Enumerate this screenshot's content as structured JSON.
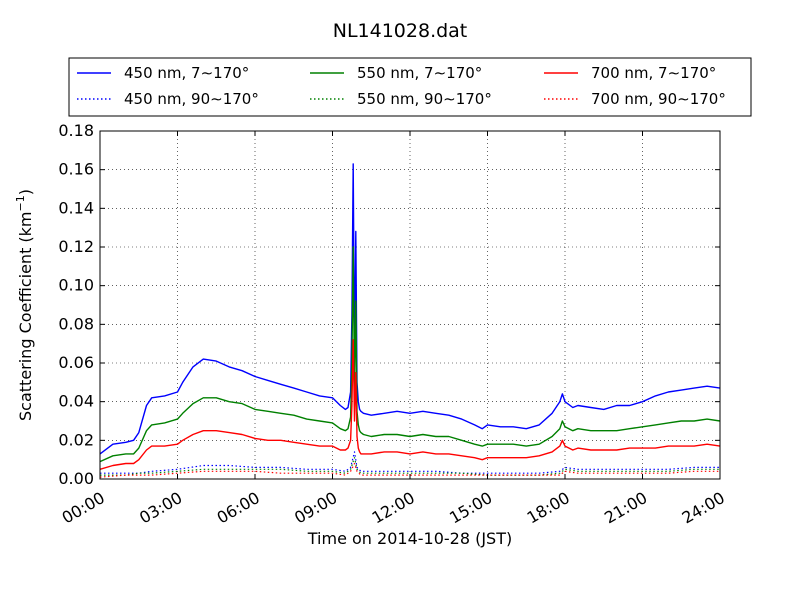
{
  "chart_data": {
    "type": "line",
    "title": "NL141028.dat",
    "xlabel": "Time on 2014-10-28 (JST)",
    "ylabel_main": "Scattering Coefficient (km",
    "ylabel_sup": "−1",
    "ylabel_close": ")",
    "xlim": [
      0,
      24
    ],
    "ylim": [
      0,
      0.18
    ],
    "grid": true,
    "legend_position": "top, above plot",
    "x_tick_labels": [
      "00:00",
      "03:00",
      "06:00",
      "09:00",
      "12:00",
      "15:00",
      "18:00",
      "21:00",
      "24:00"
    ],
    "x_ticks": [
      0,
      3,
      6,
      9,
      12,
      15,
      18,
      21,
      24
    ],
    "y_tick_labels": [
      "0.00",
      "0.02",
      "0.04",
      "0.06",
      "0.08",
      "0.10",
      "0.12",
      "0.14",
      "0.16",
      "0.18"
    ],
    "y_ticks": [
      0,
      0.02,
      0.04,
      0.06,
      0.08,
      0.1,
      0.12,
      0.14,
      0.16,
      0.18
    ],
    "series": [
      {
        "name": "450 nm, 7∼170°",
        "color": "#0000ff",
        "style": "solid",
        "x": [
          0,
          0.5,
          1.0,
          1.3,
          1.5,
          1.8,
          2.0,
          2.5,
          3.0,
          3.2,
          3.6,
          4.0,
          4.5,
          5.0,
          5.5,
          6.0,
          6.5,
          7.0,
          7.5,
          8.0,
          8.5,
          9.0,
          9.3,
          9.5,
          9.6,
          9.7,
          9.75,
          9.8,
          9.85,
          9.9,
          9.95,
          10.0,
          10.05,
          10.1,
          10.2,
          10.5,
          11.0,
          11.5,
          12.0,
          12.5,
          13.0,
          13.5,
          14.0,
          14.5,
          14.8,
          15.0,
          15.5,
          16.0,
          16.5,
          17.0,
          17.5,
          17.8,
          17.9,
          18.0,
          18.3,
          18.5,
          19.0,
          19.5,
          20.0,
          20.5,
          21.0,
          21.5,
          22.0,
          22.5,
          23.0,
          23.5,
          24.0
        ],
        "y": [
          0.013,
          0.018,
          0.019,
          0.02,
          0.024,
          0.038,
          0.042,
          0.043,
          0.045,
          0.05,
          0.058,
          0.062,
          0.061,
          0.058,
          0.056,
          0.053,
          0.051,
          0.049,
          0.047,
          0.045,
          0.043,
          0.042,
          0.038,
          0.036,
          0.037,
          0.045,
          0.085,
          0.163,
          0.06,
          0.128,
          0.05,
          0.04,
          0.036,
          0.035,
          0.034,
          0.033,
          0.034,
          0.035,
          0.034,
          0.035,
          0.034,
          0.033,
          0.031,
          0.028,
          0.026,
          0.028,
          0.027,
          0.027,
          0.026,
          0.028,
          0.034,
          0.04,
          0.044,
          0.04,
          0.037,
          0.038,
          0.037,
          0.036,
          0.038,
          0.038,
          0.04,
          0.043,
          0.045,
          0.046,
          0.047,
          0.048,
          0.047
        ]
      },
      {
        "name": "450 nm, 90∼170°",
        "color": "#0000ff",
        "style": "dotted",
        "x": [
          0,
          1,
          1.5,
          2,
          3,
          4,
          5,
          6,
          7,
          8,
          9,
          9.5,
          9.7,
          9.85,
          9.95,
          10.1,
          11,
          12,
          13,
          14,
          15,
          16,
          17,
          17.8,
          18,
          18.5,
          19,
          20,
          21,
          22,
          23,
          24
        ],
        "y": [
          0.003,
          0.003,
          0.003,
          0.004,
          0.005,
          0.007,
          0.007,
          0.006,
          0.006,
          0.005,
          0.005,
          0.004,
          0.006,
          0.014,
          0.006,
          0.004,
          0.004,
          0.004,
          0.004,
          0.003,
          0.003,
          0.003,
          0.003,
          0.004,
          0.006,
          0.005,
          0.005,
          0.005,
          0.005,
          0.005,
          0.006,
          0.006
        ]
      },
      {
        "name": "550 nm, 7∼170°",
        "color": "#008000",
        "style": "solid",
        "x": [
          0,
          0.5,
          1.0,
          1.3,
          1.5,
          1.8,
          2.0,
          2.5,
          3.0,
          3.2,
          3.6,
          4.0,
          4.5,
          5.0,
          5.5,
          6.0,
          6.5,
          7.0,
          7.5,
          8.0,
          8.5,
          9.0,
          9.3,
          9.5,
          9.6,
          9.7,
          9.75,
          9.8,
          9.85,
          9.9,
          9.95,
          10.0,
          10.05,
          10.1,
          10.2,
          10.5,
          11.0,
          11.5,
          12.0,
          12.5,
          13.0,
          13.5,
          14.0,
          14.5,
          14.8,
          15.0,
          15.5,
          16.0,
          16.5,
          17.0,
          17.5,
          17.8,
          17.9,
          18.0,
          18.3,
          18.5,
          19.0,
          19.5,
          20.0,
          20.5,
          21.0,
          21.5,
          22.0,
          22.5,
          23.0,
          23.5,
          24.0
        ],
        "y": [
          0.009,
          0.012,
          0.013,
          0.013,
          0.016,
          0.025,
          0.028,
          0.029,
          0.031,
          0.034,
          0.039,
          0.042,
          0.042,
          0.04,
          0.039,
          0.036,
          0.035,
          0.034,
          0.033,
          0.031,
          0.03,
          0.029,
          0.026,
          0.025,
          0.026,
          0.032,
          0.06,
          0.12,
          0.045,
          0.092,
          0.035,
          0.028,
          0.025,
          0.024,
          0.023,
          0.022,
          0.023,
          0.023,
          0.022,
          0.023,
          0.022,
          0.022,
          0.02,
          0.018,
          0.017,
          0.018,
          0.018,
          0.018,
          0.017,
          0.018,
          0.022,
          0.026,
          0.03,
          0.027,
          0.025,
          0.026,
          0.025,
          0.025,
          0.025,
          0.026,
          0.027,
          0.028,
          0.029,
          0.03,
          0.03,
          0.031,
          0.03
        ]
      },
      {
        "name": "550 nm, 90∼170°",
        "color": "#008000",
        "style": "dotted",
        "x": [
          0,
          1,
          1.5,
          2,
          3,
          4,
          5,
          6,
          7,
          8,
          9,
          9.5,
          9.7,
          9.85,
          9.95,
          10.1,
          11,
          12,
          13,
          14,
          15,
          16,
          17,
          17.8,
          18,
          18.5,
          19,
          20,
          21,
          22,
          23,
          24
        ],
        "y": [
          0.002,
          0.002,
          0.003,
          0.003,
          0.004,
          0.005,
          0.005,
          0.005,
          0.005,
          0.004,
          0.004,
          0.003,
          0.005,
          0.011,
          0.005,
          0.003,
          0.003,
          0.003,
          0.003,
          0.003,
          0.002,
          0.002,
          0.002,
          0.003,
          0.005,
          0.004,
          0.004,
          0.004,
          0.004,
          0.004,
          0.005,
          0.005
        ]
      },
      {
        "name": "700 nm, 7∼170°",
        "color": "#ff0000",
        "style": "solid",
        "x": [
          0,
          0.5,
          1.0,
          1.3,
          1.5,
          1.8,
          2.0,
          2.5,
          3.0,
          3.2,
          3.6,
          4.0,
          4.5,
          5.0,
          5.5,
          6.0,
          6.5,
          7.0,
          7.5,
          8.0,
          8.5,
          9.0,
          9.3,
          9.5,
          9.6,
          9.7,
          9.75,
          9.8,
          9.85,
          9.9,
          9.95,
          10.0,
          10.05,
          10.1,
          10.2,
          10.5,
          11.0,
          11.5,
          12.0,
          12.5,
          13.0,
          13.5,
          14.0,
          14.5,
          14.8,
          15.0,
          15.5,
          16.0,
          16.5,
          17.0,
          17.5,
          17.8,
          17.9,
          18.0,
          18.3,
          18.5,
          19.0,
          19.5,
          20.0,
          20.5,
          21.0,
          21.5,
          22.0,
          22.5,
          23.0,
          23.5,
          24.0
        ],
        "y": [
          0.005,
          0.007,
          0.008,
          0.008,
          0.01,
          0.015,
          0.017,
          0.017,
          0.018,
          0.02,
          0.023,
          0.025,
          0.025,
          0.024,
          0.023,
          0.021,
          0.02,
          0.02,
          0.019,
          0.018,
          0.017,
          0.017,
          0.015,
          0.015,
          0.016,
          0.02,
          0.038,
          0.072,
          0.03,
          0.055,
          0.022,
          0.016,
          0.014,
          0.013,
          0.013,
          0.013,
          0.014,
          0.014,
          0.013,
          0.014,
          0.013,
          0.013,
          0.012,
          0.011,
          0.01,
          0.011,
          0.011,
          0.011,
          0.011,
          0.012,
          0.014,
          0.017,
          0.02,
          0.017,
          0.015,
          0.016,
          0.015,
          0.015,
          0.015,
          0.016,
          0.016,
          0.016,
          0.017,
          0.017,
          0.017,
          0.018,
          0.017
        ]
      },
      {
        "name": "700 nm, 90∼170°",
        "color": "#ff0000",
        "style": "dotted",
        "x": [
          0,
          1,
          1.5,
          2,
          3,
          4,
          5,
          6,
          7,
          8,
          9,
          9.5,
          9.7,
          9.85,
          9.95,
          10.1,
          11,
          12,
          13,
          14,
          15,
          16,
          17,
          17.8,
          18,
          18.5,
          19,
          20,
          21,
          22,
          23,
          24
        ],
        "y": [
          0.001,
          0.002,
          0.002,
          0.002,
          0.003,
          0.004,
          0.004,
          0.004,
          0.003,
          0.003,
          0.003,
          0.002,
          0.004,
          0.008,
          0.004,
          0.002,
          0.002,
          0.002,
          0.002,
          0.002,
          0.002,
          0.002,
          0.002,
          0.002,
          0.004,
          0.003,
          0.003,
          0.003,
          0.003,
          0.003,
          0.004,
          0.004
        ]
      }
    ]
  }
}
